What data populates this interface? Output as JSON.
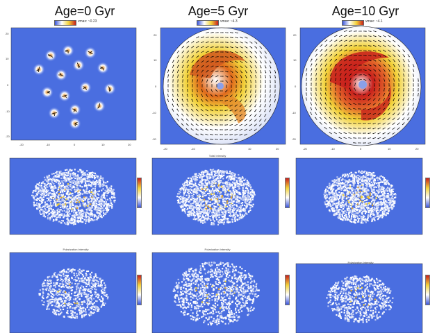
{
  "columns": [
    {
      "title": "Age=0 Gyr",
      "cbar_label": "vmax: ~0.23"
    },
    {
      "title": "Age=5 Gyr",
      "cbar_label": "vmax: ~4.3"
    },
    {
      "title": "Age=10 Gyr",
      "cbar_label": "vmax: ~4.1"
    }
  ],
  "rows": [
    {
      "name": "velocity-field"
    },
    {
      "name": "total-intensity",
      "plot_title": "Total Intensity"
    },
    {
      "name": "polarization-intensity",
      "plot_title": "Polarization Intensity"
    }
  ],
  "axis_ticks": [
    "-20",
    "-10",
    "0",
    "10",
    "20"
  ],
  "colors": {
    "background": "#4a6ee0",
    "low": "#3b55d9",
    "mid": "#ffffff",
    "high": "#f2d23a",
    "peak": "#c8201c"
  }
}
